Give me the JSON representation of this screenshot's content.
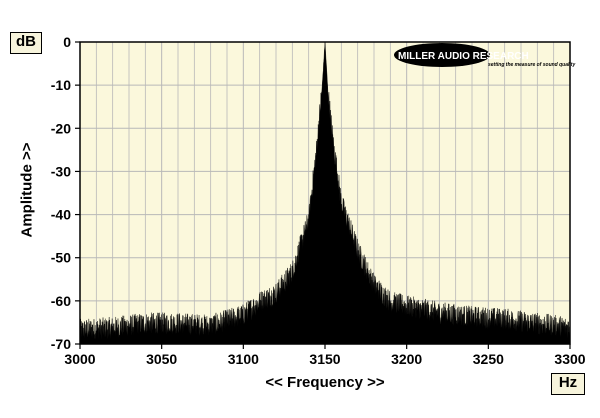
{
  "chart_data": {
    "type": "area",
    "title": "",
    "xlabel": "<< Frequency >>",
    "ylabel": "Amplitude >>",
    "x_unit": "Hz",
    "y_unit": "dB",
    "xlim": [
      3000,
      3300
    ],
    "ylim": [
      -70,
      0
    ],
    "x_ticks": [
      3000,
      3050,
      3100,
      3150,
      3200,
      3250,
      3300
    ],
    "y_ticks": [
      0,
      -10,
      -20,
      -30,
      -40,
      -50,
      -60,
      -70
    ],
    "grid": true,
    "background_color": "#fbf8dc",
    "fill_color": "#000000",
    "grid_color": "#b8b8b8",
    "series": [
      {
        "x": [
          3000,
          3020,
          3040,
          3060,
          3080,
          3100,
          3110,
          3120,
          3130,
          3140,
          3145,
          3148,
          3150,
          3152,
          3155,
          3160,
          3170,
          3180,
          3190,
          3200,
          3220,
          3240,
          3260,
          3280,
          3300
        ],
        "values": [
          -67.5,
          -67,
          -66,
          -66,
          -66.5,
          -64,
          -61,
          -59,
          -54,
          -42,
          -25,
          -12,
          0,
          -13,
          -24,
          -38,
          -49,
          -57,
          -61,
          -62,
          -63.5,
          -64.5,
          -65,
          -66,
          -67
        ]
      }
    ]
  },
  "logo": {
    "brand": "MILLER AUDIO RESEARCH",
    "tagline": "setting the measure of sound quality"
  }
}
